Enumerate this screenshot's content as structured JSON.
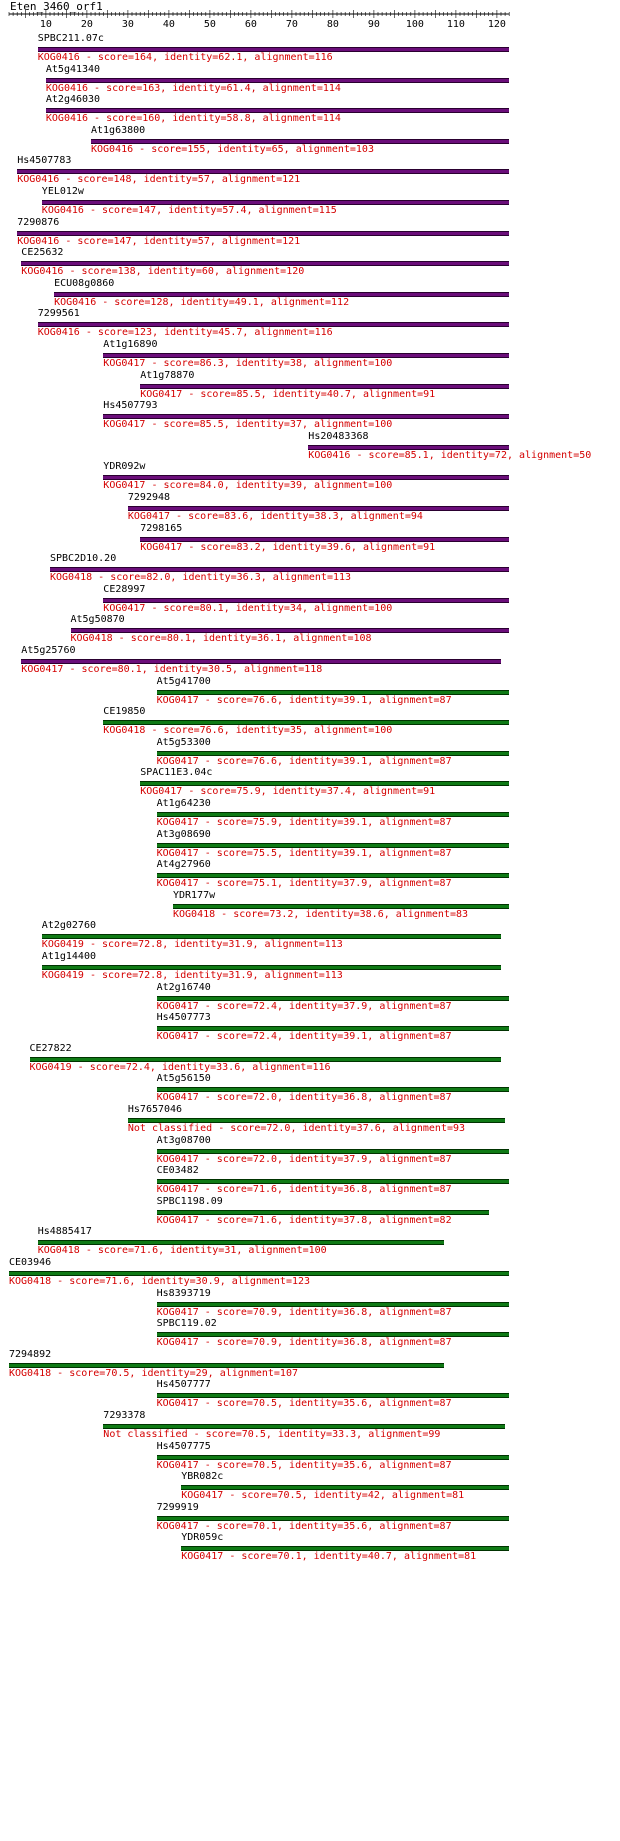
{
  "title": "Eten_3460_orf1",
  "axis": {
    "ticks": [
      10,
      20,
      30,
      40,
      50,
      60,
      70,
      80,
      90,
      100,
      110,
      120
    ],
    "min": 1,
    "max": 123
  },
  "colors": {
    "purple": "#6b0e7a",
    "green": "#0f7a15",
    "desc": "#d40000"
  },
  "hits": [
    {
      "name": "SPBC211.07c",
      "start": 8,
      "end": 123,
      "color": "purple",
      "desc": "KOG0416 - score=164, identity=62.1, alignment=116"
    },
    {
      "name": "At5g41340",
      "start": 10,
      "end": 123,
      "color": "purple",
      "desc": "KOG0416 - score=163, identity=61.4, alignment=114"
    },
    {
      "name": "At2g46030",
      "start": 10,
      "end": 123,
      "color": "purple",
      "desc": "KOG0416 - score=160, identity=58.8, alignment=114"
    },
    {
      "name": "At1g63800",
      "start": 21,
      "end": 123,
      "color": "purple",
      "desc": "KOG0416 - score=155, identity=65, alignment=103"
    },
    {
      "name": "Hs4507783",
      "start": 3,
      "end": 123,
      "color": "purple",
      "desc": "KOG0416 - score=148, identity=57, alignment=121"
    },
    {
      "name": "YEL012w",
      "start": 9,
      "end": 123,
      "color": "purple",
      "desc": "KOG0416 - score=147, identity=57.4, alignment=115"
    },
    {
      "name": "7290876",
      "start": 3,
      "end": 123,
      "color": "purple",
      "desc": "KOG0416 - score=147, identity=57, alignment=121"
    },
    {
      "name": "CE25632",
      "start": 4,
      "end": 123,
      "color": "purple",
      "desc": "KOG0416 - score=138, identity=60, alignment=120"
    },
    {
      "name": "ECU08g0860",
      "start": 12,
      "end": 123,
      "color": "purple",
      "desc": "KOG0416 - score=128, identity=49.1, alignment=112"
    },
    {
      "name": "7299561",
      "start": 8,
      "end": 123,
      "color": "purple",
      "desc": "KOG0416 - score=123, identity=45.7, alignment=116"
    },
    {
      "name": "At1g16890",
      "start": 24,
      "end": 123,
      "color": "purple",
      "desc": "KOG0417 - score=86.3, identity=38, alignment=100"
    },
    {
      "name": "At1g78870",
      "start": 33,
      "end": 123,
      "color": "purple",
      "desc": "KOG0417 - score=85.5, identity=40.7, alignment=91"
    },
    {
      "name": "Hs4507793",
      "start": 24,
      "end": 123,
      "color": "purple",
      "desc": "KOG0417 - score=85.5, identity=37, alignment=100"
    },
    {
      "name": "Hs20483368",
      "start": 74,
      "end": 123,
      "color": "purple",
      "desc": "KOG0416 - score=85.1, identity=72, alignment=50"
    },
    {
      "name": "YDR092w",
      "start": 24,
      "end": 123,
      "color": "purple",
      "desc": "KOG0417 - score=84.0, identity=39, alignment=100"
    },
    {
      "name": "7292948",
      "start": 30,
      "end": 123,
      "color": "purple",
      "desc": "KOG0417 - score=83.6, identity=38.3, alignment=94"
    },
    {
      "name": "7298165",
      "start": 33,
      "end": 123,
      "color": "purple",
      "desc": "KOG0417 - score=83.2, identity=39.6, alignment=91"
    },
    {
      "name": "SPBC2D10.20",
      "start": 11,
      "end": 123,
      "color": "purple",
      "desc": "KOG0418 - score=82.0, identity=36.3, alignment=113"
    },
    {
      "name": "CE28997",
      "start": 24,
      "end": 123,
      "color": "purple",
      "desc": "KOG0417 - score=80.1, identity=34, alignment=100"
    },
    {
      "name": "At5g50870",
      "start": 16,
      "end": 123,
      "color": "purple",
      "desc": "KOG0418 - score=80.1, identity=36.1, alignment=108"
    },
    {
      "name": "At5g25760",
      "start": 4,
      "end": 121,
      "color": "purple",
      "desc": "KOG0417 - score=80.1, identity=30.5, alignment=118"
    },
    {
      "name": "At5g41700",
      "start": 37,
      "end": 123,
      "color": "green",
      "desc": "KOG0417 - score=76.6, identity=39.1, alignment=87"
    },
    {
      "name": "CE19850",
      "start": 24,
      "end": 123,
      "color": "green",
      "desc": "KOG0418 - score=76.6, identity=35, alignment=100"
    },
    {
      "name": "At5g53300",
      "start": 37,
      "end": 123,
      "color": "green",
      "desc": "KOG0417 - score=76.6, identity=39.1, alignment=87"
    },
    {
      "name": "SPAC11E3.04c",
      "start": 33,
      "end": 123,
      "color": "green",
      "desc": "KOG0417 - score=75.9, identity=37.4, alignment=91"
    },
    {
      "name": "At1g64230",
      "start": 37,
      "end": 123,
      "color": "green",
      "desc": "KOG0417 - score=75.9, identity=39.1, alignment=87"
    },
    {
      "name": "At3g08690",
      "start": 37,
      "end": 123,
      "color": "green",
      "desc": "KOG0417 - score=75.5, identity=39.1, alignment=87"
    },
    {
      "name": "At4g27960",
      "start": 37,
      "end": 123,
      "color": "green",
      "desc": "KOG0417 - score=75.1, identity=37.9, alignment=87"
    },
    {
      "name": "YDR177w",
      "start": 41,
      "end": 123,
      "color": "green",
      "desc": "KOG0418 - score=73.2, identity=38.6, alignment=83"
    },
    {
      "name": "At2g02760",
      "start": 9,
      "end": 121,
      "color": "green",
      "desc": "KOG0419 - score=72.8, identity=31.9, alignment=113"
    },
    {
      "name": "At1g14400",
      "start": 9,
      "end": 121,
      "color": "green",
      "desc": "KOG0419 - score=72.8, identity=31.9, alignment=113"
    },
    {
      "name": "At2g16740",
      "start": 37,
      "end": 123,
      "color": "green",
      "desc": "KOG0417 - score=72.4, identity=37.9, alignment=87"
    },
    {
      "name": "Hs4507773",
      "start": 37,
      "end": 123,
      "color": "green",
      "desc": "KOG0417 - score=72.4, identity=39.1, alignment=87"
    },
    {
      "name": "CE27822",
      "start": 6,
      "end": 121,
      "color": "green",
      "desc": "KOG0419 - score=72.4, identity=33.6, alignment=116"
    },
    {
      "name": "At5g56150",
      "start": 37,
      "end": 123,
      "color": "green",
      "desc": "KOG0417 - score=72.0, identity=36.8, alignment=87"
    },
    {
      "name": "Hs7657046",
      "start": 30,
      "end": 122,
      "color": "green",
      "desc": "Not classified - score=72.0, identity=37.6, alignment=93"
    },
    {
      "name": "At3g08700",
      "start": 37,
      "end": 123,
      "color": "green",
      "desc": "KOG0417 - score=72.0, identity=37.9, alignment=87"
    },
    {
      "name": "CE03482",
      "start": 37,
      "end": 123,
      "color": "green",
      "desc": "KOG0417 - score=71.6, identity=36.8, alignment=87"
    },
    {
      "name": "SPBC1198.09",
      "start": 37,
      "end": 118,
      "color": "green",
      "desc": "KOG0417 - score=71.6, identity=37.8, alignment=82"
    },
    {
      "name": "Hs4885417",
      "start": 8,
      "end": 107,
      "color": "green",
      "desc": "KOG0418 - score=71.6, identity=31, alignment=100"
    },
    {
      "name": "CE03946",
      "start": 1,
      "end": 123,
      "color": "green",
      "desc": "KOG0418 - score=71.6, identity=30.9, alignment=123"
    },
    {
      "name": "Hs8393719",
      "start": 37,
      "end": 123,
      "color": "green",
      "desc": "KOG0417 - score=70.9, identity=36.8, alignment=87"
    },
    {
      "name": "SPBC119.02",
      "start": 37,
      "end": 123,
      "color": "green",
      "desc": "KOG0417 - score=70.9, identity=36.8, alignment=87"
    },
    {
      "name": "7294892",
      "start": 1,
      "end": 107,
      "color": "green",
      "desc": "KOG0418 - score=70.5, identity=29, alignment=107"
    },
    {
      "name": "Hs4507777",
      "start": 37,
      "end": 123,
      "color": "green",
      "desc": "KOG0417 - score=70.5, identity=35.6, alignment=87"
    },
    {
      "name": "7293378",
      "start": 24,
      "end": 122,
      "color": "green",
      "desc": "Not classified - score=70.5, identity=33.3, alignment=99"
    },
    {
      "name": "Hs4507775",
      "start": 37,
      "end": 123,
      "color": "green",
      "desc": "KOG0417 - score=70.5, identity=35.6, alignment=87"
    },
    {
      "name": "YBR082c",
      "start": 43,
      "end": 123,
      "color": "green",
      "desc": "KOG0417 - score=70.5, identity=42, alignment=81"
    },
    {
      "name": "7299919",
      "start": 37,
      "end": 123,
      "color": "green",
      "desc": "KOG0417 - score=70.1, identity=35.6, alignment=87"
    },
    {
      "name": "YDR059c",
      "start": 43,
      "end": 123,
      "color": "green",
      "desc": "KOG0417 - score=70.1, identity=40.7, alignment=81"
    }
  ]
}
